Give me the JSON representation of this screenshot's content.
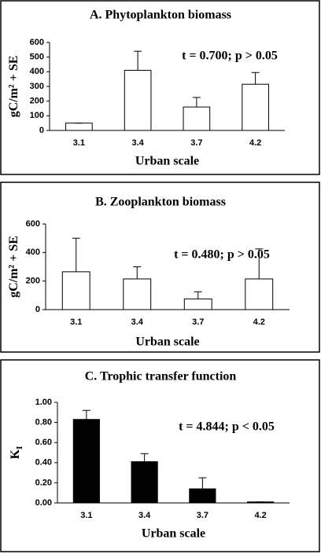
{
  "chart_data": [
    {
      "type": "bar",
      "title": "A. Phytoplankton biomass",
      "annotation": "t = 0.700; p > 0.05",
      "x_label": "Urban scale",
      "y_label": "gC/m² + SE",
      "categories": [
        "3.1",
        "3.4",
        "3.7",
        "4.2"
      ],
      "values": [
        50,
        410,
        160,
        315
      ],
      "errors": [
        0,
        130,
        65,
        80
      ],
      "color": "#ffffff",
      "ylim": [
        0,
        600
      ],
      "yticks": [
        0,
        100,
        200,
        300,
        400,
        500,
        600
      ]
    },
    {
      "type": "bar",
      "title": "B. Zooplankton biomass",
      "annotation": "t = 0.480; p > 0.05",
      "x_label": "Urban scale",
      "y_label": "gC/m² + SE",
      "categories": [
        "3.1",
        "3.4",
        "3.7",
        "4.2"
      ],
      "values": [
        265,
        215,
        75,
        215
      ],
      "errors": [
        235,
        85,
        50,
        210
      ],
      "color": "#ffffff",
      "ylim": [
        0,
        600
      ],
      "yticks": [
        0,
        200,
        400,
        600
      ]
    },
    {
      "type": "bar",
      "title": "C.  Trophic transfer function",
      "annotation": "t = 4.844; p < 0.05",
      "x_label": "Urban scale",
      "y_label": "K",
      "y_label_sub": "I",
      "categories": [
        "3.1",
        "3.4",
        "3.7",
        "4.2"
      ],
      "values": [
        0.83,
        0.41,
        0.14,
        0.01
      ],
      "errors": [
        0.09,
        0.08,
        0.11,
        0
      ],
      "color": "#000000",
      "ylim": [
        0,
        1
      ],
      "yticks": [
        {
          "value": 0,
          "label": "0.00"
        },
        {
          "value": 0.2,
          "label": "0.20"
        },
        {
          "value": 0.4,
          "label": "0.40"
        },
        {
          "value": 0.6,
          "label": "0.60"
        },
        {
          "value": 0.8,
          "label": "0.80"
        },
        {
          "value": 1,
          "label": "1.00"
        }
      ]
    }
  ]
}
